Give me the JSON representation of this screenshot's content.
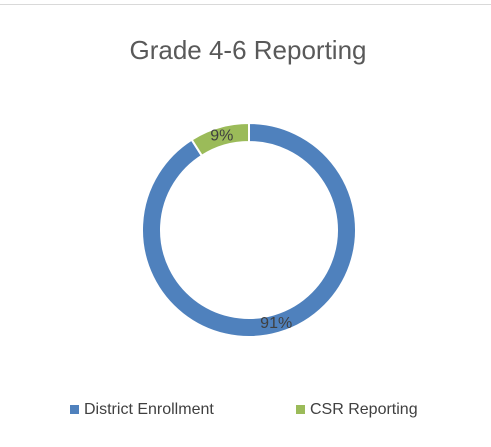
{
  "chart_data": {
    "type": "donut",
    "title": "Grade 4-6 Reporting",
    "categories": [
      "District Enrollment",
      "CSR Reporting"
    ],
    "values": [
      91,
      9
    ],
    "value_labels": [
      "91%",
      "9%"
    ],
    "colors": [
      "#4f81bd",
      "#9bbb59"
    ],
    "legend": "bottom"
  }
}
